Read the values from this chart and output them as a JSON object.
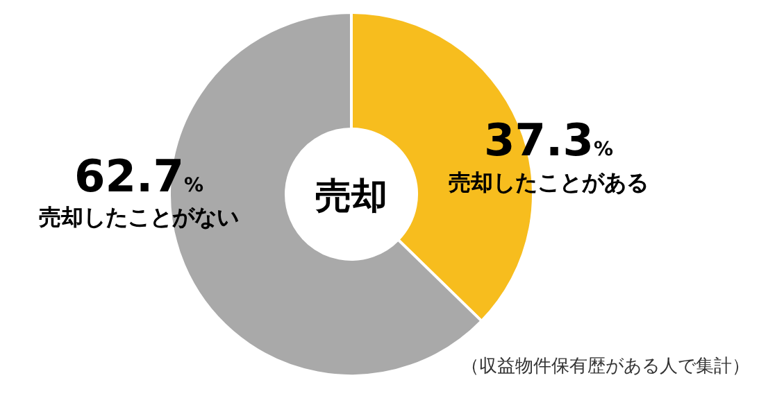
{
  "chart_data": {
    "type": "donut",
    "title": "売却",
    "categories": [
      "売却したことがある",
      "売却したことがない"
    ],
    "values": [
      37.3,
      62.7
    ],
    "colors": [
      "#f7bd1e",
      "#a9a9a9"
    ],
    "value_labels": [
      "37.3%",
      "62.7%"
    ],
    "annotations": [
      "（収益物件保有歴がある人で集計）"
    ]
  }
}
